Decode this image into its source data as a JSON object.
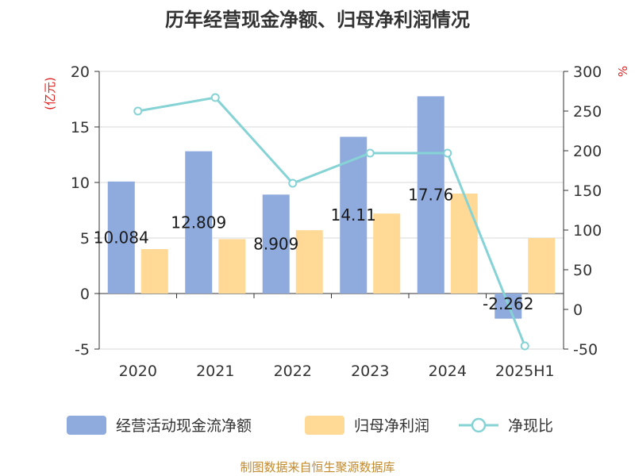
{
  "chart_data": {
    "type": "bar",
    "title": "历年经营现金净额、归母净利润情况",
    "categories": [
      "2020",
      "2021",
      "2022",
      "2023",
      "2024",
      "2025H1"
    ],
    "y_left": {
      "unit": "(亿元)",
      "range": [
        -5,
        20
      ],
      "ticks": [
        "-5",
        "0",
        "5",
        "10",
        "15",
        "20"
      ]
    },
    "y_right": {
      "unit": "%",
      "range": [
        -50,
        300
      ],
      "ticks": [
        "-50",
        "0",
        "50",
        "100",
        "150",
        "200",
        "250",
        "300"
      ]
    },
    "series": [
      {
        "name": "经营活动现金流净额",
        "type": "bar",
        "axis": "left",
        "color": "#8faadc",
        "values": [
          10.084,
          12.809,
          8.909,
          14.11,
          17.76,
          -2.262
        ],
        "labels": [
          "10.084",
          "12.809",
          "8.909",
          "14.11",
          "17.76",
          "-2.262"
        ]
      },
      {
        "name": "归母净利润",
        "type": "bar",
        "axis": "left",
        "color": "#ffd995",
        "values": [
          4.0,
          4.9,
          5.7,
          7.2,
          9.0,
          5.0
        ]
      },
      {
        "name": "净现比",
        "type": "line",
        "axis": "right",
        "color": "#86d3d6",
        "values": [
          250,
          267,
          159,
          197,
          197,
          -46
        ]
      }
    ],
    "grid": true,
    "legend_position": "bottom"
  },
  "source": "制图数据来自恒生聚源数据库"
}
